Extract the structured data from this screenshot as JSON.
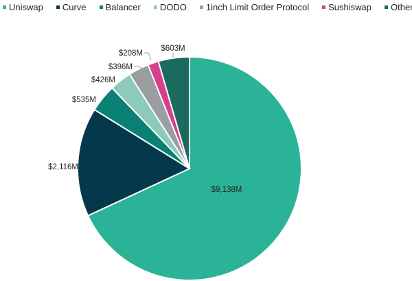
{
  "chart_data": {
    "type": "pie",
    "title": "",
    "legend_position": "top",
    "slices": [
      {
        "name": "Uniswap",
        "value": 9138,
        "label": "$9,138M",
        "color": "#2ab397"
      },
      {
        "name": "Curve",
        "value": 2116,
        "label": "$2,116M",
        "color": "#03394b"
      },
      {
        "name": "Balancer",
        "value": 535,
        "label": "$535M",
        "color": "#0b8175"
      },
      {
        "name": "DODO",
        "value": 426,
        "label": "$426M",
        "color": "#8ccbba"
      },
      {
        "name": "1inch Limit Order Protocol",
        "value": 396,
        "label": "$396M",
        "color": "#9a9ea1"
      },
      {
        "name": "Sushiswap",
        "value": 208,
        "label": "$208M",
        "color": "#d63f8c"
      },
      {
        "name": "Other",
        "value": 603,
        "label": "$603M",
        "color": "#1a6b5e"
      }
    ]
  }
}
